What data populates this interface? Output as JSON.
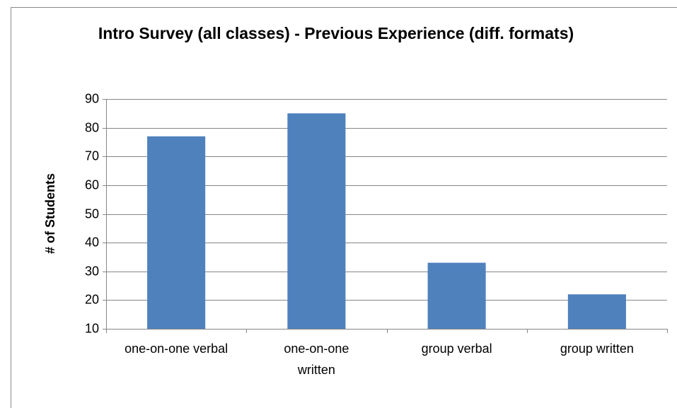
{
  "chart_data": {
    "type": "bar",
    "title": "Intro Survey (all classes) - Previous Experience (diff. formats)",
    "y_label": "# of Students",
    "categories": [
      "one-on-one verbal",
      "one-on-one written",
      "group verbal",
      "group written"
    ],
    "values": [
      77,
      85,
      33,
      22
    ],
    "color": "#4f81bd",
    "ylim": [
      10,
      90
    ],
    "yticks": [
      10,
      20,
      30,
      40,
      50,
      60,
      70,
      80,
      90
    ],
    "grid": true
  }
}
